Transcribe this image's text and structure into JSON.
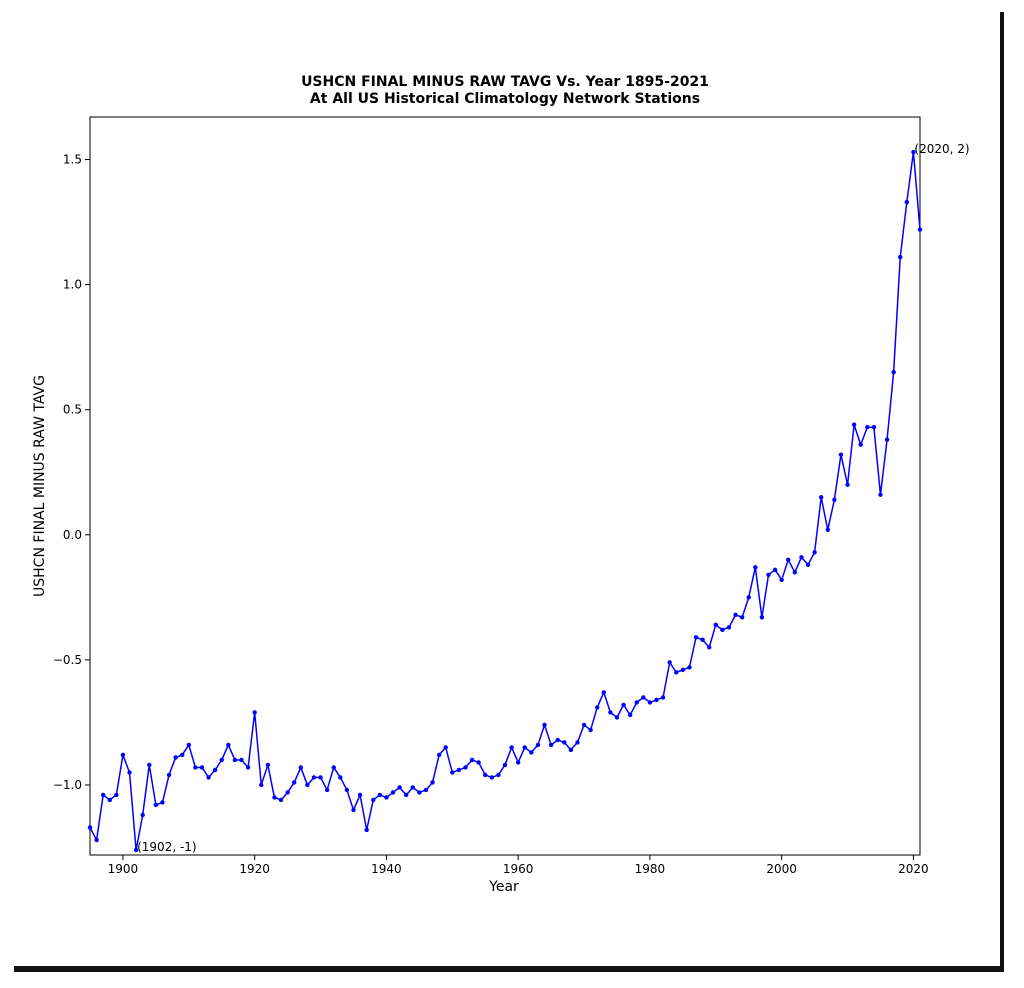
{
  "chart_data": {
    "type": "line",
    "title": "USHCN FINAL MINUS RAW TAVG Vs. Year 1895-2021",
    "subtitle": "At All US Historical Climatology Network Stations",
    "xlabel": "Year",
    "ylabel": "USHCN FINAL MINUS RAW TAVG",
    "xlim": [
      1895,
      2021
    ],
    "ylim": [
      -1.28,
      1.67
    ],
    "x_ticks": [
      1900,
      1920,
      1940,
      1960,
      1980,
      2000,
      2020
    ],
    "x_tick_labels": [
      "1900",
      "1920",
      "1940",
      "1960",
      "1980",
      "2000",
      "2020"
    ],
    "y_ticks": [
      -1.0,
      -0.5,
      0.0,
      0.5,
      1.0,
      1.5
    ],
    "y_tick_labels": [
      "−1.0",
      "−0.5",
      "0.0",
      "0.5",
      "1.0",
      "1.5"
    ],
    "grid": false,
    "color": "#0000ff",
    "x": [
      1895,
      1896,
      1897,
      1898,
      1899,
      1900,
      1901,
      1902,
      1903,
      1904,
      1905,
      1906,
      1907,
      1908,
      1909,
      1910,
      1911,
      1912,
      1913,
      1914,
      1915,
      1916,
      1917,
      1918,
      1919,
      1920,
      1921,
      1922,
      1923,
      1924,
      1925,
      1926,
      1927,
      1928,
      1929,
      1930,
      1931,
      1932,
      1933,
      1934,
      1935,
      1936,
      1937,
      1938,
      1939,
      1940,
      1941,
      1942,
      1943,
      1944,
      1945,
      1946,
      1947,
      1948,
      1949,
      1950,
      1951,
      1952,
      1953,
      1954,
      1955,
      1956,
      1957,
      1958,
      1959,
      1960,
      1961,
      1962,
      1963,
      1964,
      1965,
      1966,
      1967,
      1968,
      1969,
      1970,
      1971,
      1972,
      1973,
      1974,
      1975,
      1976,
      1977,
      1978,
      1979,
      1980,
      1981,
      1982,
      1983,
      1984,
      1985,
      1986,
      1987,
      1988,
      1989,
      1990,
      1991,
      1992,
      1993,
      1994,
      1995,
      1996,
      1997,
      1998,
      1999,
      2000,
      2001,
      2002,
      2003,
      2004,
      2005,
      2006,
      2007,
      2008,
      2009,
      2010,
      2011,
      2012,
      2013,
      2014,
      2015,
      2016,
      2017,
      2018,
      2019,
      2020,
      2021
    ],
    "y": [
      -1.17,
      -1.22,
      -1.04,
      -1.06,
      -1.04,
      -0.88,
      -0.95,
      -1.26,
      -1.12,
      -0.92,
      -1.08,
      -1.07,
      -0.96,
      -0.89,
      -0.88,
      -0.84,
      -0.93,
      -0.93,
      -0.97,
      -0.94,
      -0.9,
      -0.84,
      -0.9,
      -0.9,
      -0.93,
      -0.71,
      -1.0,
      -0.92,
      -1.05,
      -1.06,
      -1.03,
      -0.99,
      -0.93,
      -1.0,
      -0.97,
      -0.97,
      -1.02,
      -0.93,
      -0.97,
      -1.02,
      -1.1,
      -1.04,
      -1.18,
      -1.06,
      -1.04,
      -1.05,
      -1.03,
      -1.01,
      -1.04,
      -1.01,
      -1.03,
      -1.02,
      -0.99,
      -0.88,
      -0.85,
      -0.95,
      -0.94,
      -0.93,
      -0.9,
      -0.91,
      -0.96,
      -0.97,
      -0.96,
      -0.92,
      -0.85,
      -0.91,
      -0.85,
      -0.87,
      -0.84,
      -0.76,
      -0.84,
      -0.82,
      -0.83,
      -0.86,
      -0.83,
      -0.76,
      -0.78,
      -0.69,
      -0.63,
      -0.71,
      -0.73,
      -0.68,
      -0.72,
      -0.67,
      -0.65,
      -0.67,
      -0.66,
      -0.65,
      -0.51,
      -0.55,
      -0.54,
      -0.53,
      -0.41,
      -0.42,
      -0.45,
      -0.36,
      -0.38,
      -0.37,
      -0.32,
      -0.33,
      -0.25,
      -0.13,
      -0.33,
      -0.16,
      -0.14,
      -0.18,
      -0.1,
      -0.15,
      -0.09,
      -0.12,
      -0.07,
      0.15,
      0.02,
      0.14,
      0.32,
      0.2,
      0.44,
      0.36,
      0.43,
      0.43,
      0.16,
      0.38,
      0.65,
      1.11,
      1.33,
      1.53,
      1.22
    ],
    "annotations": [
      {
        "text": "(1902, -1)",
        "x": 1902,
        "y": -1.26
      },
      {
        "text": "(2020, 2)",
        "x": 2020,
        "y": 1.53
      }
    ]
  }
}
